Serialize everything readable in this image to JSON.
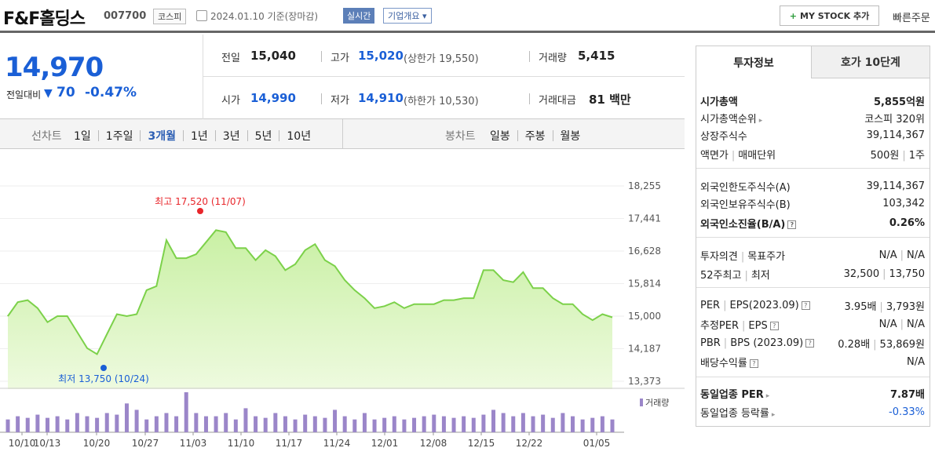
{
  "header": {
    "company": "F&F홀딩스",
    "code": "007700",
    "market": "코스피",
    "date": "2024.01.10",
    "basis": "기준(장마감)",
    "realtime": "실시간",
    "overview": "기업개요",
    "mystock": "MY STOCK 추가",
    "quick_order": "빠른주문"
  },
  "price": {
    "current": "14,970",
    "change_label": "전일대비",
    "change_arrow": "▼",
    "change": "70",
    "change_pct": "-0.47%",
    "prev_close_label": "전일",
    "prev_close": "15,040",
    "open_label": "시가",
    "open": "14,990",
    "high_label": "고가",
    "high": "15,020",
    "upper_limit_label": "(상한가",
    "upper_limit": "19,550)",
    "low_label": "저가",
    "low": "14,910",
    "lower_limit_label": "(하한가",
    "lower_limit": "10,530)",
    "volume_label": "거래량",
    "volume": "5,415",
    "amount_label": "거래대금",
    "amount": "81",
    "amount_unit": "백만"
  },
  "tabs": {
    "line_chart_label": "선차트",
    "periods": [
      "1일",
      "1주일",
      "3개월",
      "1년",
      "3년",
      "5년",
      "10년"
    ],
    "selected": "3개월",
    "candle_chart_label": "봉차트",
    "candle_periods": [
      "일봉",
      "주봉",
      "월봉"
    ]
  },
  "chart_data": {
    "type": "area",
    "y_ticks": [
      "18,255",
      "17,441",
      "16,628",
      "15,814",
      "15,000",
      "14,187",
      "13,373"
    ],
    "ylim": [
      13373,
      18255
    ],
    "x_ticks": [
      "10/10",
      "10/13",
      "10/20",
      "10/27",
      "11/03",
      "11/10",
      "11/17",
      "11/24",
      "12/01",
      "12/08",
      "12/15",
      "12/22",
      "01/05"
    ],
    "max_label": "최고 17,520 (11/07)",
    "min_label": "최저 13,750 (10/24)",
    "volume_legend": "거래량",
    "colors": {
      "line": "#7cd14a",
      "fill_top": "#c9f0a4",
      "fill_bottom": "#eefadf",
      "volume": "#9b86c9",
      "max": "#e8262b",
      "min": "#1a5fd6"
    },
    "prices": [
      15000,
      15350,
      15400,
      15200,
      14850,
      15000,
      15000,
      14600,
      14200,
      14050,
      14550,
      15050,
      15000,
      15050,
      15650,
      15750,
      16900,
      16450,
      16450,
      16550,
      16850,
      17150,
      17100,
      16700,
      16700,
      16400,
      16650,
      16500,
      16150,
      16300,
      16650,
      16800,
      16400,
      16250,
      15900,
      15650,
      15450,
      15200,
      15250,
      15350,
      15200,
      15300,
      15300,
      15300,
      15400,
      15400,
      15450,
      15450,
      16150,
      16150,
      15900,
      15850,
      16100,
      15700,
      15700,
      15450,
      15300,
      15300,
      15050,
      14900,
      15050,
      14970
    ],
    "volumes": [
      8,
      10,
      9,
      11,
      9,
      10,
      8,
      12,
      10,
      9,
      12,
      11,
      18,
      14,
      8,
      10,
      12,
      10,
      25,
      12,
      10,
      10,
      12,
      8,
      15,
      10,
      9,
      12,
      10,
      8,
      11,
      10,
      9,
      14,
      10,
      8,
      12,
      8,
      9,
      10,
      8,
      9,
      10,
      11,
      10,
      9,
      10,
      9,
      11,
      14,
      12,
      10,
      12,
      10,
      11,
      9,
      12,
      10,
      8,
      9,
      10,
      8
    ]
  },
  "right": {
    "tab_invest": "투자정보",
    "tab_order": "호가 10단계",
    "rows": [
      {
        "k": "시가총액",
        "v": "5,855억원"
      },
      {
        "k": "시가총액순위",
        "v": "코스피 320위"
      },
      {
        "k": "상장주식수",
        "v": "39,114,367"
      },
      {
        "k": "액면가",
        "k2": "매매단위",
        "v": "500원",
        "v2": "1주"
      },
      {
        "k": "외국인한도주식수(A)",
        "v": "39,114,367"
      },
      {
        "k": "외국인보유주식수(B)",
        "v": "103,342"
      },
      {
        "k": "외국인소진율(B/A)",
        "v": "0.26%"
      },
      {
        "k": "투자의견",
        "k2": "목표주가",
        "v": "N/A",
        "v2": "N/A"
      },
      {
        "k": "52주최고",
        "k2": "최저",
        "v": "32,500",
        "v2": "13,750"
      },
      {
        "k": "PER",
        "k2": "EPS(2023.09)",
        "v": "3.95배",
        "v2": "3,793원"
      },
      {
        "k": "추정PER",
        "k2": "EPS",
        "v": "N/A",
        "v2": "N/A"
      },
      {
        "k": "PBR",
        "k2": "BPS (2023.09)",
        "v": "0.28배",
        "v2": "53,869원"
      },
      {
        "k": "배당수익률",
        "v": "N/A"
      },
      {
        "k": "동일업종 PER",
        "v": "7.87배"
      },
      {
        "k": "동일업종 등락률",
        "v": "-0.33%"
      }
    ]
  }
}
